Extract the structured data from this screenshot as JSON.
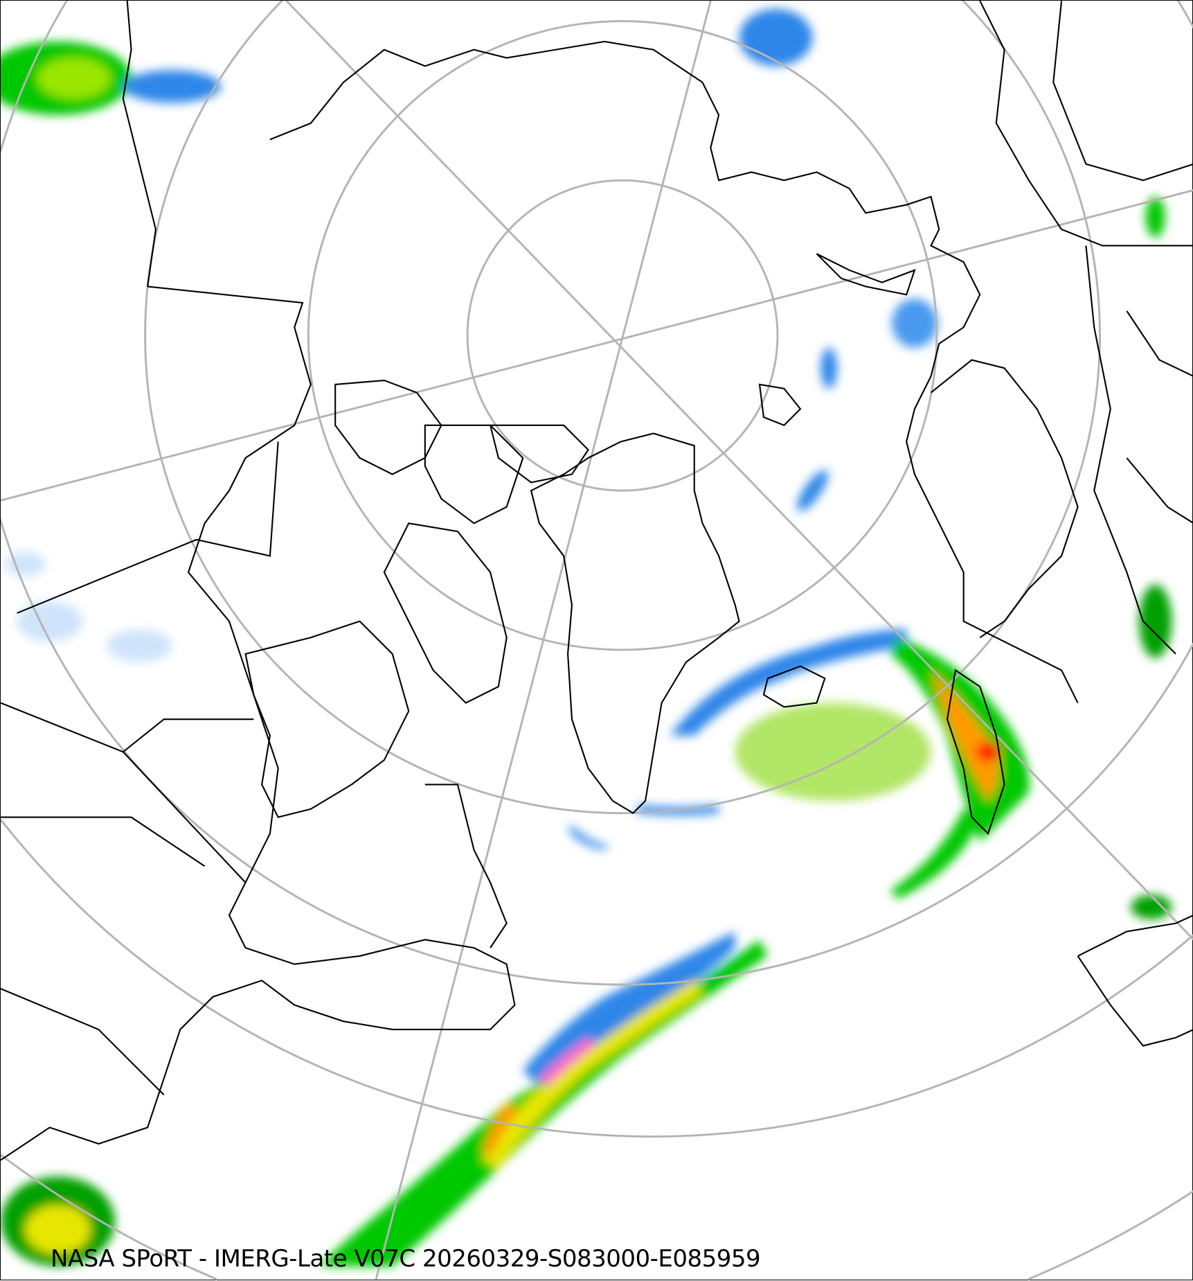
{
  "map": {
    "caption": "NASA SPoRT - IMERG-Late V07C 20260329-S083000-E085959",
    "projection": "north polar stereographic",
    "graticule_color": "#b4b4b4",
    "coastline_color": "#000000",
    "precip_colors": {
      "very_light": "#cfe4fb",
      "light": "#8ec2f5",
      "moderate_snow": "#2f86e8",
      "light_rain": "#00c800",
      "rain_dark": "#006400",
      "rain_medium": "#9ae600",
      "heavy": "#ffff00",
      "very_heavy": "#ff9a00",
      "extreme": "#ff1e00",
      "mixed": "#ff66cc"
    }
  }
}
